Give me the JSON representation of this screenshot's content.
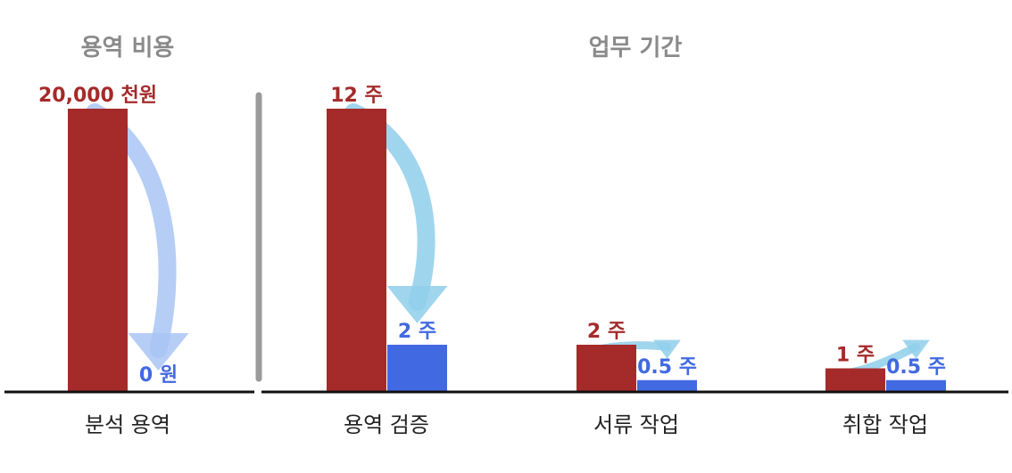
{
  "colors": {
    "before": "#a52a2a",
    "after": "#4169e1",
    "arrow_cost": "#a9c4f5",
    "arrow_time": "#8fcfea",
    "title": "#8a8a8a",
    "divider": "#9a9a9a"
  },
  "chart_data": [
    {
      "type": "bar",
      "title": "용역 비용",
      "categories": [
        "분석 용역"
      ],
      "series": [
        {
          "values": [
            20000
          ],
          "labels": [
            "20,000 천원"
          ]
        },
        {
          "values": [
            0
          ],
          "labels": [
            "0 원"
          ]
        }
      ],
      "ylim": [
        0,
        20000
      ]
    },
    {
      "type": "bar",
      "title": "업무 기간",
      "categories": [
        "용역 검증",
        "서류 작업",
        "취합 작업"
      ],
      "series": [
        {
          "values": [
            12,
            2,
            1
          ],
          "labels": [
            "12 주",
            "2 주",
            "1 주"
          ]
        },
        {
          "values": [
            2,
            0.5,
            0.5
          ],
          "labels": [
            "2 주",
            "0.5 주",
            "0.5 주"
          ]
        }
      ],
      "ylim": [
        0,
        12
      ]
    }
  ]
}
